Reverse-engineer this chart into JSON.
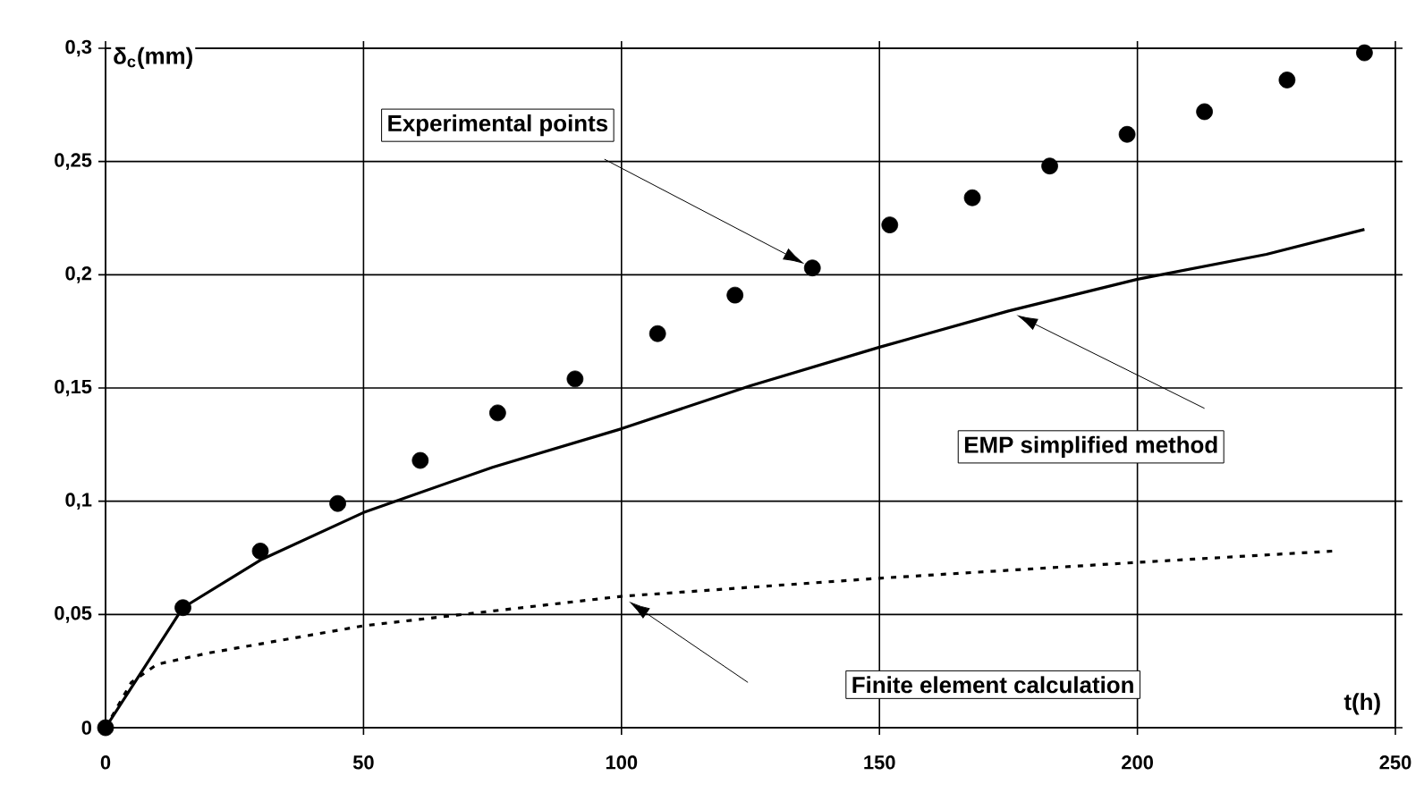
{
  "chart_data": {
    "type": "scatter",
    "xlabel": "t(h)",
    "ylabel": "δ$_{c}$(mm)",
    "xlim": [
      0,
      250
    ],
    "ylim": [
      0,
      0.3
    ],
    "xticks": [
      0,
      50,
      100,
      150,
      200,
      250
    ],
    "yticks": [
      0,
      {
        "value": 0.05,
        "label": "0,05"
      },
      {
        "value": 0.1,
        "label": "0,1"
      },
      {
        "value": 0.15,
        "label": "0,15"
      },
      {
        "value": 0.2,
        "label": "0,2"
      },
      {
        "value": 0.25,
        "label": "0,25"
      },
      {
        "value": 0.3,
        "label": "0,3"
      }
    ],
    "grid": true,
    "series": [
      {
        "name": "Experimental points",
        "marker": "circle",
        "color": "#000000",
        "x": [
          0,
          15,
          30,
          45,
          61,
          76,
          91,
          107,
          122,
          137,
          152,
          168,
          183,
          198,
          213,
          229,
          244
        ],
        "values": [
          0,
          0.053,
          0.078,
          0.099,
          0.118,
          0.139,
          0.154,
          0.174,
          0.191,
          0.203,
          0.222,
          0.234,
          0.248,
          0.262,
          0.272,
          0.286,
          0.298
        ]
      },
      {
        "name": "EMP simplified method",
        "type": "line",
        "marker": "none",
        "line_style": "solid",
        "color": "#000000",
        "x": [
          0,
          15,
          30,
          50,
          75,
          100,
          125,
          150,
          175,
          200,
          225,
          244
        ],
        "values": [
          0,
          0.053,
          0.074,
          0.095,
          0.115,
          0.132,
          0.151,
          0.168,
          0.184,
          0.198,
          0.209,
          0.22
        ]
      },
      {
        "name": "Finite element calculation",
        "type": "line",
        "marker": "none",
        "line_style": "dotted",
        "color": "#000000",
        "x": [
          0,
          5,
          10,
          20,
          50,
          100,
          150,
          200,
          238
        ],
        "values": [
          0,
          0.02,
          0.028,
          0.033,
          0.045,
          0.058,
          0.066,
          0.073,
          0.078
        ]
      }
    ]
  }
}
